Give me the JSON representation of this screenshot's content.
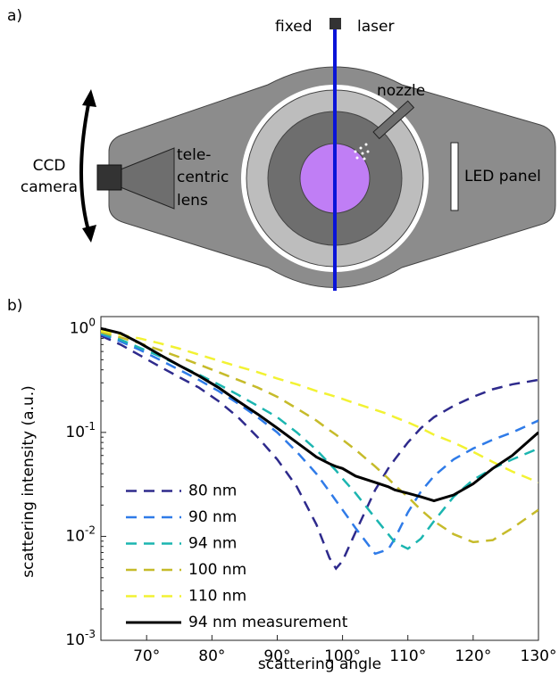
{
  "diagram": {
    "panel_label": "a)",
    "labels": [
      "fixed",
      "laser",
      "nozzle",
      "LED panel",
      "CCD",
      "camera",
      "tele-",
      "centric",
      "lens"
    ]
  },
  "chart_data": {
    "type": "line",
    "panel_label": "b)",
    "x_label": "scattering angle",
    "y_label": "scattering intensity (a.u.)",
    "log_y": true,
    "legend": "lower left",
    "xlim": [
      63,
      130
    ],
    "xticks": [
      {
        "value": 70,
        "label": "70°"
      },
      {
        "value": 80,
        "label": "80°"
      },
      {
        "value": 90,
        "label": "90°"
      },
      {
        "value": 100,
        "label": "100°"
      },
      {
        "value": 110,
        "label": "110°"
      },
      {
        "value": 120,
        "label": "120°"
      },
      {
        "value": 130,
        "label": "130°"
      }
    ],
    "ylim": [
      0.001,
      1.3
    ],
    "yticks": [
      {
        "value": 1,
        "label": "10^0"
      },
      {
        "value": 0.1,
        "label": "10^-1"
      },
      {
        "value": 0.01,
        "label": "10^-2"
      },
      {
        "value": 0.001,
        "label": "10^-3"
      }
    ],
    "x": [
      63,
      66,
      69,
      72,
      75,
      78,
      81,
      84,
      87,
      90,
      93,
      96,
      98,
      99,
      100,
      102,
      105,
      107,
      108,
      110,
      112,
      114,
      117,
      120,
      123,
      126,
      130
    ],
    "series": [
      {
        "name": "80 nm",
        "color": "#2e2a8c",
        "style": "dashed",
        "values": [
          0.85,
          0.7,
          0.55,
          0.43,
          0.34,
          0.27,
          0.2,
          0.14,
          0.09,
          0.055,
          0.03,
          0.013,
          0.0062,
          0.0049,
          0.0058,
          0.011,
          0.028,
          0.045,
          0.055,
          0.08,
          0.11,
          0.14,
          0.18,
          0.22,
          0.26,
          0.29,
          0.32
        ]
      },
      {
        "name": "90 nm",
        "color": "#2f7be8",
        "style": "dashed",
        "values": [
          0.88,
          0.75,
          0.62,
          0.5,
          0.4,
          0.32,
          0.25,
          0.19,
          0.14,
          0.1,
          0.065,
          0.04,
          0.027,
          0.022,
          0.018,
          0.012,
          0.0068,
          0.0075,
          0.0095,
          0.017,
          0.027,
          0.038,
          0.055,
          0.07,
          0.085,
          0.1,
          0.13
        ]
      },
      {
        "name": "94 nm",
        "color": "#1bb5b0",
        "style": "dashed",
        "values": [
          0.9,
          0.78,
          0.65,
          0.54,
          0.44,
          0.36,
          0.29,
          0.23,
          0.18,
          0.14,
          0.1,
          0.068,
          0.05,
          0.043,
          0.036,
          0.026,
          0.015,
          0.0105,
          0.0088,
          0.0076,
          0.0095,
          0.014,
          0.024,
          0.035,
          0.045,
          0.055,
          0.07
        ]
      },
      {
        "name": "100 nm",
        "color": "#c6bb2a",
        "style": "dashed",
        "values": [
          0.92,
          0.82,
          0.72,
          0.62,
          0.53,
          0.45,
          0.38,
          0.32,
          0.27,
          0.22,
          0.17,
          0.13,
          0.105,
          0.095,
          0.085,
          0.068,
          0.047,
          0.036,
          0.031,
          0.024,
          0.018,
          0.014,
          0.0105,
          0.0088,
          0.0092,
          0.012,
          0.018
        ]
      },
      {
        "name": "110 nm",
        "color": "#f2f233",
        "style": "dashed",
        "values": [
          0.95,
          0.87,
          0.8,
          0.72,
          0.64,
          0.56,
          0.49,
          0.43,
          0.38,
          0.33,
          0.29,
          0.25,
          0.23,
          0.22,
          0.21,
          0.19,
          0.165,
          0.15,
          0.14,
          0.125,
          0.11,
          0.095,
          0.08,
          0.065,
          0.052,
          0.042,
          0.033
        ]
      },
      {
        "name": "94 nm measurement",
        "color": "#000000",
        "style": "solid",
        "values": [
          1.0,
          0.9,
          0.72,
          0.56,
          0.44,
          0.35,
          0.27,
          0.2,
          0.15,
          0.11,
          0.08,
          0.058,
          0.05,
          0.047,
          0.045,
          0.038,
          0.033,
          0.03,
          0.028,
          0.026,
          0.024,
          0.022,
          0.025,
          0.032,
          0.045,
          0.06,
          0.1
        ]
      }
    ]
  }
}
